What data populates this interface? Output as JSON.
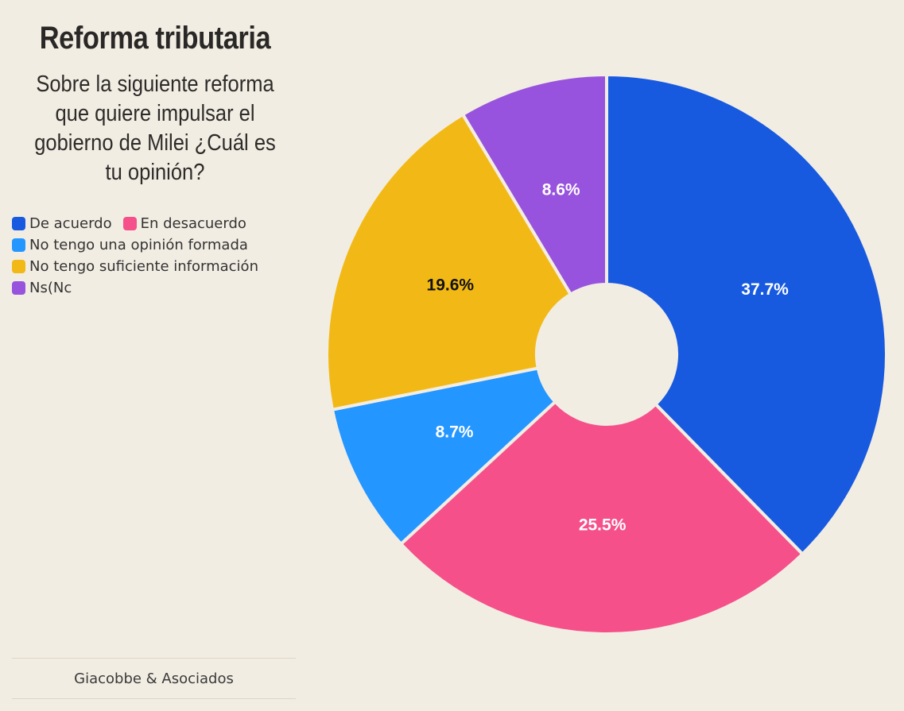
{
  "chart_data": {
    "type": "pie",
    "title": "Reforma tributaria",
    "subtitle": "Sobre la siguiente reforma que quiere impulsar el gobierno de Milei ¿Cuál es tu opinión?",
    "categories": [
      "De acuerdo",
      "En desacuerdo",
      "No tengo una opinión formada",
      "No tengo suficiente información",
      "Ns(Nc"
    ],
    "values": [
      37.7,
      25.5,
      8.7,
      19.6,
      8.6
    ],
    "value_labels": [
      "37.7%",
      "25.5%",
      "8.7%",
      "19.6%",
      "8.6%"
    ],
    "colors": [
      "#175ae0",
      "#f5508a",
      "#2496ff",
      "#f2b916",
      "#9853de"
    ],
    "label_colors": [
      "#ffffff",
      "#ffffff",
      "#ffffff",
      "#111111",
      "#ffffff"
    ],
    "donut": true,
    "legend_position": "top-left",
    "source": "Giacobbe & Asociados"
  }
}
